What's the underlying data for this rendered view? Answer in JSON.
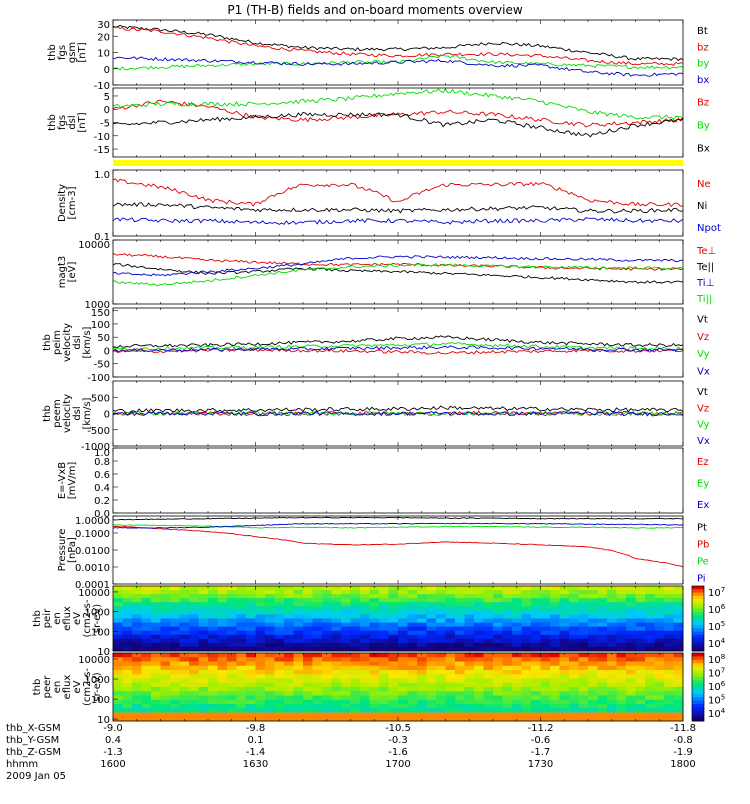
{
  "title": "P1 (TH-B) fields and on-board moments overview",
  "date_label": "2009 Jan 05",
  "colors": {
    "black": "#000000",
    "red": "#e00000",
    "green": "#00dd00",
    "blue": "#0000cc",
    "yellow": "#ffff00"
  },
  "ticks": {
    "thb_X-GSM": [
      "-9.0",
      "-9.8",
      "-10.5",
      "-11.2",
      "-11.8"
    ],
    "thb_Y-GSM": [
      "0.4",
      "0.1",
      "-0.3",
      "-0.6",
      "-0.8"
    ],
    "thb_Z-GSM": [
      "-1.3",
      "-1.4",
      "-1.6",
      "-1.7",
      "-1.9"
    ],
    "hhmm": [
      "1600",
      "1630",
      "1700",
      "1730",
      "1800"
    ]
  },
  "tick_row_labels": [
    "thb_X-GSM",
    "thb_Y-GSM",
    "thb_Z-GSM",
    "hhmm"
  ],
  "chart_data": [
    {
      "type": "line",
      "panel": "fgs_gsm",
      "ylabel_lines": [
        "thb",
        "fgs",
        "gsm",
        "[nT]"
      ],
      "ylim": [
        -10,
        30
      ],
      "ytick_labels": [
        "30",
        "20",
        "10",
        "0",
        "-10"
      ],
      "ytick_values": [
        30,
        20,
        10,
        0,
        -10
      ],
      "x": [
        "1600",
        "1610",
        "1620",
        "1630",
        "1640",
        "1650",
        "1700",
        "1710",
        "1720",
        "1730",
        "1740",
        "1750",
        "1800"
      ],
      "series": [
        {
          "name": "Bt",
          "color": "#000000",
          "values": [
            26,
            24,
            21,
            16,
            13,
            12,
            12,
            13,
            16,
            14,
            10,
            6,
            6
          ]
        },
        {
          "name": "bz",
          "color": "#e00000",
          "values": [
            25,
            23,
            19,
            14,
            11,
            9,
            8,
            9,
            9,
            8,
            5,
            3,
            3
          ]
        },
        {
          "name": "by",
          "color": "#00dd00",
          "values": [
            0,
            1,
            2,
            3,
            3,
            4,
            4,
            8,
            4,
            3,
            2,
            1,
            1
          ]
        },
        {
          "name": "bx",
          "color": "#0000cc",
          "values": [
            7,
            6,
            5,
            4,
            3,
            3,
            4,
            5,
            2,
            2,
            -2,
            -4,
            -3
          ]
        }
      ]
    },
    {
      "type": "line",
      "panel": "fgs_dsl",
      "ylabel_lines": [
        "thb",
        "fgs",
        "dsl",
        "[nT]"
      ],
      "ylim": [
        -18,
        8
      ],
      "ytick_labels": [
        "5",
        "0",
        "-5",
        "-10",
        "-15"
      ],
      "ytick_values": [
        5,
        0,
        -5,
        -10,
        -15
      ],
      "x": [
        "1600",
        "1610",
        "1620",
        "1630",
        "1640",
        "1650",
        "1700",
        "1710",
        "1720",
        "1730",
        "1740",
        "1750",
        "1800"
      ],
      "series": [
        {
          "name": "Bz",
          "color": "#e00000",
          "values": [
            0,
            3,
            1,
            -3,
            -4,
            -3,
            -2,
            -1,
            -2,
            -4,
            -6,
            -5,
            -4
          ]
        },
        {
          "name": "By",
          "color": "#00dd00",
          "values": [
            1,
            2,
            2,
            2,
            3,
            4,
            6,
            7,
            5,
            3,
            -1,
            -3,
            -3
          ]
        },
        {
          "name": "Bx",
          "color": "#000000",
          "values": [
            -6,
            -5,
            -4,
            -3,
            -2,
            -2,
            -2,
            -6,
            -4,
            -7,
            -10,
            -6,
            -4
          ]
        }
      ]
    },
    {
      "type": "line",
      "panel": "density",
      "ylabel_lines": [
        "Density",
        "[cm-3]"
      ],
      "scale": "log",
      "ylim": [
        0.1,
        1.0
      ],
      "ytick_labels": [
        "1.0",
        "0.1"
      ],
      "ytick_values": [
        1.0,
        0.1
      ],
      "x": [
        "1600",
        "1610",
        "1620",
        "1630",
        "1640",
        "1650",
        "1700",
        "1710",
        "1720",
        "1730",
        "1740",
        "1750",
        "1800"
      ],
      "series": [
        {
          "name": "Ne",
          "color": "#e00000",
          "values": [
            0.7,
            0.55,
            0.35,
            0.3,
            0.6,
            0.6,
            0.32,
            0.6,
            0.6,
            0.62,
            0.35,
            0.3,
            0.3
          ]
        },
        {
          "name": "Ni",
          "color": "#000000",
          "values": [
            0.3,
            0.3,
            0.27,
            0.25,
            0.25,
            0.25,
            0.24,
            0.25,
            0.26,
            0.27,
            0.24,
            0.24,
            0.25
          ]
        },
        {
          "name": "Npot",
          "color": "#0000cc",
          "values": [
            0.18,
            0.17,
            0.17,
            0.16,
            0.16,
            0.17,
            0.17,
            0.16,
            0.17,
            0.17,
            0.18,
            0.17,
            0.17
          ]
        }
      ]
    },
    {
      "type": "line",
      "panel": "temperature",
      "ylabel_lines": [
        "magt3",
        "[eV]"
      ],
      "scale": "log",
      "ylim": [
        1000,
        10000
      ],
      "ytick_labels": [
        "10000",
        "1000"
      ],
      "ytick_values": [
        10000,
        1000
      ],
      "x": [
        "1600",
        "1610",
        "1620",
        "1630",
        "1640",
        "1650",
        "1700",
        "1710",
        "1720",
        "1730",
        "1740",
        "1750",
        "1800"
      ],
      "series": [
        {
          "name": "Te⊥",
          "color": "#e00000",
          "values": [
            6000,
            5500,
            4800,
            4500,
            4200,
            4100,
            4200,
            4000,
            3900,
            3700,
            3600,
            3500,
            3500
          ]
        },
        {
          "name": "Te||",
          "color": "#000000",
          "values": [
            4200,
            3500,
            3000,
            3200,
            3600,
            3300,
            3200,
            3000,
            2800,
            2600,
            2400,
            2200,
            2200
          ]
        },
        {
          "name": "Ti⊥",
          "color": "#0000cc",
          "values": [
            3000,
            2800,
            3200,
            3600,
            4200,
            5200,
            5500,
            5400,
            5300,
            5100,
            5000,
            4800,
            4800
          ]
        },
        {
          "name": "Ti||",
          "color": "#00dd00",
          "values": [
            2200,
            2000,
            2300,
            2800,
            3400,
            3800,
            4000,
            4100,
            3900,
            3800,
            3700,
            3700,
            3600
          ]
        }
      ]
    },
    {
      "type": "line",
      "panel": "peim_velocity",
      "ylabel_lines": [
        "thb",
        "peim",
        "velocity",
        "dsl",
        "[km/s]"
      ],
      "ylim": [
        -100,
        160
      ],
      "ytick_labels": [
        "150",
        "100",
        "50",
        "0",
        "-50",
        "-100"
      ],
      "ytick_values": [
        150,
        100,
        50,
        0,
        -50,
        -100
      ],
      "x": [
        "1600",
        "1610",
        "1620",
        "1630",
        "1640",
        "1650",
        "1700",
        "1710",
        "1720",
        "1730",
        "1740",
        "1750",
        "1800"
      ],
      "series": [
        {
          "name": "Vt",
          "color": "#000000",
          "values": [
            15,
            18,
            20,
            25,
            30,
            35,
            45,
            50,
            40,
            30,
            25,
            20,
            20
          ]
        },
        {
          "name": "Vz",
          "color": "#e00000",
          "values": [
            -5,
            -3,
            0,
            2,
            0,
            -2,
            -5,
            -10,
            -5,
            -3,
            0,
            -2,
            0
          ]
        },
        {
          "name": "Vy",
          "color": "#00dd00",
          "values": [
            5,
            8,
            10,
            12,
            15,
            18,
            20,
            25,
            20,
            15,
            10,
            8,
            8
          ]
        },
        {
          "name": "Vx",
          "color": "#0000cc",
          "values": [
            0,
            2,
            3,
            5,
            5,
            8,
            10,
            12,
            10,
            8,
            5,
            3,
            2
          ]
        }
      ]
    },
    {
      "type": "line",
      "panel": "peem_velocity",
      "ylabel_lines": [
        "thb",
        "peem",
        "velocity",
        "dsl",
        "[km/s]"
      ],
      "ylim": [
        -1000,
        1000
      ],
      "ytick_labels": [
        "500",
        "0",
        "-500",
        "-1000"
      ],
      "ytick_values": [
        500,
        0,
        -500,
        -1000
      ],
      "x": [
        "1600",
        "1610",
        "1620",
        "1630",
        "1640",
        "1650",
        "1700",
        "1710",
        "1720",
        "1730",
        "1740",
        "1750",
        "1800"
      ],
      "series": [
        {
          "name": "Vt",
          "color": "#000000",
          "values": [
            80,
            90,
            100,
            110,
            120,
            130,
            140,
            180,
            150,
            140,
            120,
            110,
            100
          ]
        },
        {
          "name": "Vz",
          "color": "#e00000",
          "values": [
            0,
            -10,
            10,
            -20,
            0,
            10,
            -10,
            0,
            20,
            -10,
            0,
            10,
            0
          ]
        },
        {
          "name": "Vy",
          "color": "#00dd00",
          "values": [
            10,
            0,
            -10,
            10,
            -20,
            0,
            10,
            -20,
            0,
            10,
            -10,
            0,
            5
          ]
        },
        {
          "name": "Vx",
          "color": "#0000cc",
          "values": [
            -10,
            10,
            0,
            -10,
            10,
            -10,
            0,
            10,
            -10,
            0,
            10,
            -20,
            0
          ]
        }
      ]
    },
    {
      "type": "line",
      "panel": "efield",
      "ylabel_lines": [
        "E=-VxB",
        "[mV/m]"
      ],
      "ylim": [
        0,
        1.0
      ],
      "ytick_labels": [
        "1.0",
        "0.8",
        "0.6",
        "0.4",
        "0.2",
        "0.0"
      ],
      "ytick_values": [
        1.0,
        0.8,
        0.6,
        0.4,
        0.2,
        0.0
      ],
      "x": [],
      "series": [
        {
          "name": "Ez",
          "color": "#e00000",
          "values": []
        },
        {
          "name": "Ey",
          "color": "#00dd00",
          "values": []
        },
        {
          "name": "Ex",
          "color": "#0000cc",
          "values": []
        }
      ]
    },
    {
      "type": "line",
      "panel": "pressure",
      "ylabel_lines": [
        "Pressure",
        "[nPa]"
      ],
      "scale": "log",
      "ylim": [
        0.0001,
        1.0
      ],
      "ytick_labels": [
        "1.0000",
        "0.1000",
        "0.0100",
        "0.0010",
        "0.0001"
      ],
      "ytick_values": [
        1.0,
        0.1,
        0.01,
        0.001,
        0.0001
      ],
      "x": [
        "1600",
        "1610",
        "1620",
        "1630",
        "1640",
        "1650",
        "1700",
        "1710",
        "1720",
        "1730",
        "1740",
        "1750",
        "1800"
      ],
      "series": [
        {
          "name": "Pt",
          "color": "#000000",
          "values": [
            0.6,
            0.65,
            0.7,
            0.75,
            0.8,
            0.8,
            0.8,
            0.75,
            0.75,
            0.7,
            0.7,
            0.7,
            0.7
          ]
        },
        {
          "name": "Pb",
          "color": "#e00000",
          "values": [
            0.25,
            0.18,
            0.12,
            0.06,
            0.025,
            0.02,
            0.022,
            0.03,
            0.025,
            0.02,
            0.015,
            0.003,
            0.001
          ]
        },
        {
          "name": "Pe",
          "color": "#00dd00",
          "values": [
            0.3,
            0.28,
            0.25,
            0.2,
            0.22,
            0.2,
            0.22,
            0.24,
            0.24,
            0.22,
            0.22,
            0.2,
            0.2
          ]
        },
        {
          "name": "Pi",
          "color": "#0000cc",
          "values": [
            0.2,
            0.2,
            0.22,
            0.28,
            0.35,
            0.35,
            0.35,
            0.36,
            0.36,
            0.35,
            0.33,
            0.32,
            0.3
          ]
        }
      ]
    },
    {
      "type": "heatmap",
      "panel": "peir_en_eflux",
      "ylabel_lines": [
        "thb",
        "peir",
        "en",
        "eflux",
        "eV",
        "(cm2-s-",
        "sr-eV)"
      ],
      "scale": "log",
      "ylim": [
        10,
        20000
      ],
      "ytick_labels": [
        "10000",
        "1000",
        "100",
        "10"
      ],
      "ytick_values": [
        10000,
        1000,
        100,
        10
      ],
      "colorbar_labels": [
        "10^7",
        "10^6",
        "10^5",
        "10^4"
      ],
      "colorbar_values": [
        10000000,
        1000000,
        100000,
        10000
      ]
    },
    {
      "type": "heatmap",
      "panel": "peer_en_eflux",
      "ylabel_lines": [
        "thb",
        "peer",
        "en",
        "eflux",
        "eV",
        "(cm2-s-",
        "sr-eV)"
      ],
      "scale": "log",
      "ylim": [
        8,
        20000
      ],
      "ytick_labels": [
        "10000",
        "1000",
        "100",
        "10"
      ],
      "ytick_values": [
        10000,
        1000,
        100,
        10
      ],
      "colorbar_labels": [
        "10^8",
        "10^7",
        "10^6",
        "10^5",
        "10^4"
      ],
      "colorbar_values": [
        100000000,
        10000000,
        1000000,
        100000,
        10000
      ]
    }
  ]
}
